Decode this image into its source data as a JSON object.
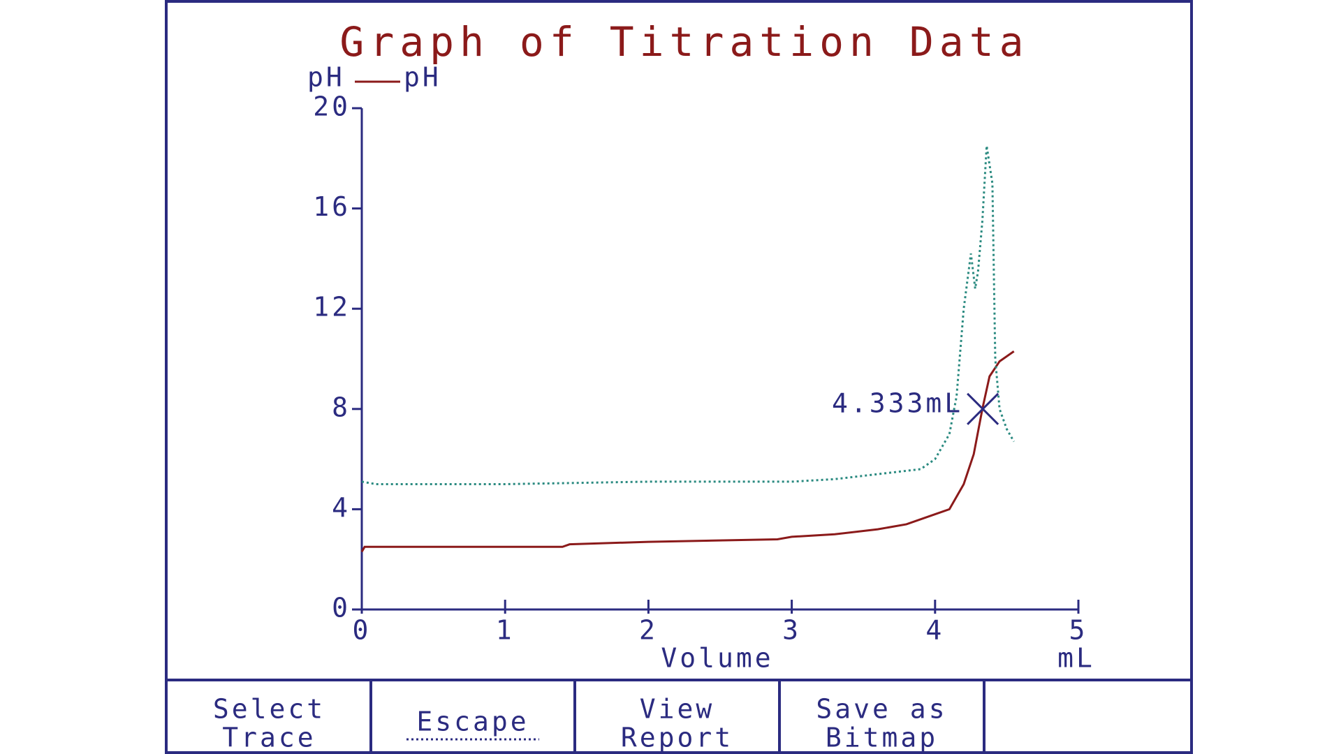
{
  "chart_data": {
    "type": "line",
    "title": "Graph of Titration Data",
    "y_label": "pH",
    "x_label": "Volume",
    "x_unit": "mL",
    "xlim": [
      0,
      5
    ],
    "xticks": [
      0,
      1,
      2,
      3,
      4,
      5
    ],
    "ylim": [
      0,
      20
    ],
    "yticks": [
      0,
      4,
      8,
      12,
      16,
      20
    ],
    "axis_color": "#2b2b80",
    "series": [
      {
        "name": "pH",
        "color": "#8b1a1a",
        "style": "solid",
        "x": [
          0,
          0.02,
          0.5,
          1.4,
          1.45,
          2,
          2.9,
          3.0,
          3.3,
          3.6,
          3.8,
          4.0,
          4.1,
          4.2,
          4.27,
          4.33,
          4.38,
          4.45,
          4.55
        ],
        "values": [
          2.3,
          2.5,
          2.5,
          2.5,
          2.6,
          2.7,
          2.8,
          2.9,
          3.0,
          3.2,
          3.4,
          3.8,
          4.0,
          5.0,
          6.2,
          8.0,
          9.3,
          9.9,
          10.3
        ]
      },
      {
        "color": "#2a8a80",
        "style": "dotted",
        "x": [
          0,
          0.1,
          1,
          2,
          3,
          3.3,
          3.6,
          3.9,
          4.0,
          4.1,
          4.15,
          4.2,
          4.25,
          4.28,
          4.3,
          4.33,
          4.36,
          4.4,
          4.42,
          4.45,
          4.5,
          4.55
        ],
        "values": [
          5.1,
          5.0,
          5.0,
          5.1,
          5.1,
          5.2,
          5.4,
          5.6,
          6.0,
          7.0,
          8.5,
          12,
          14.2,
          12.8,
          13.5,
          15.5,
          18.5,
          17,
          10,
          8,
          7.2,
          6.7
        ]
      }
    ],
    "cursor": {
      "label": "4.333mL",
      "x": 4.333,
      "y": 8
    }
  },
  "buttons": [
    [
      "Select",
      "Trace"
    ],
    [
      "Escape"
    ],
    [
      "View",
      "Report"
    ],
    [
      "Save as",
      "Bitmap"
    ]
  ]
}
